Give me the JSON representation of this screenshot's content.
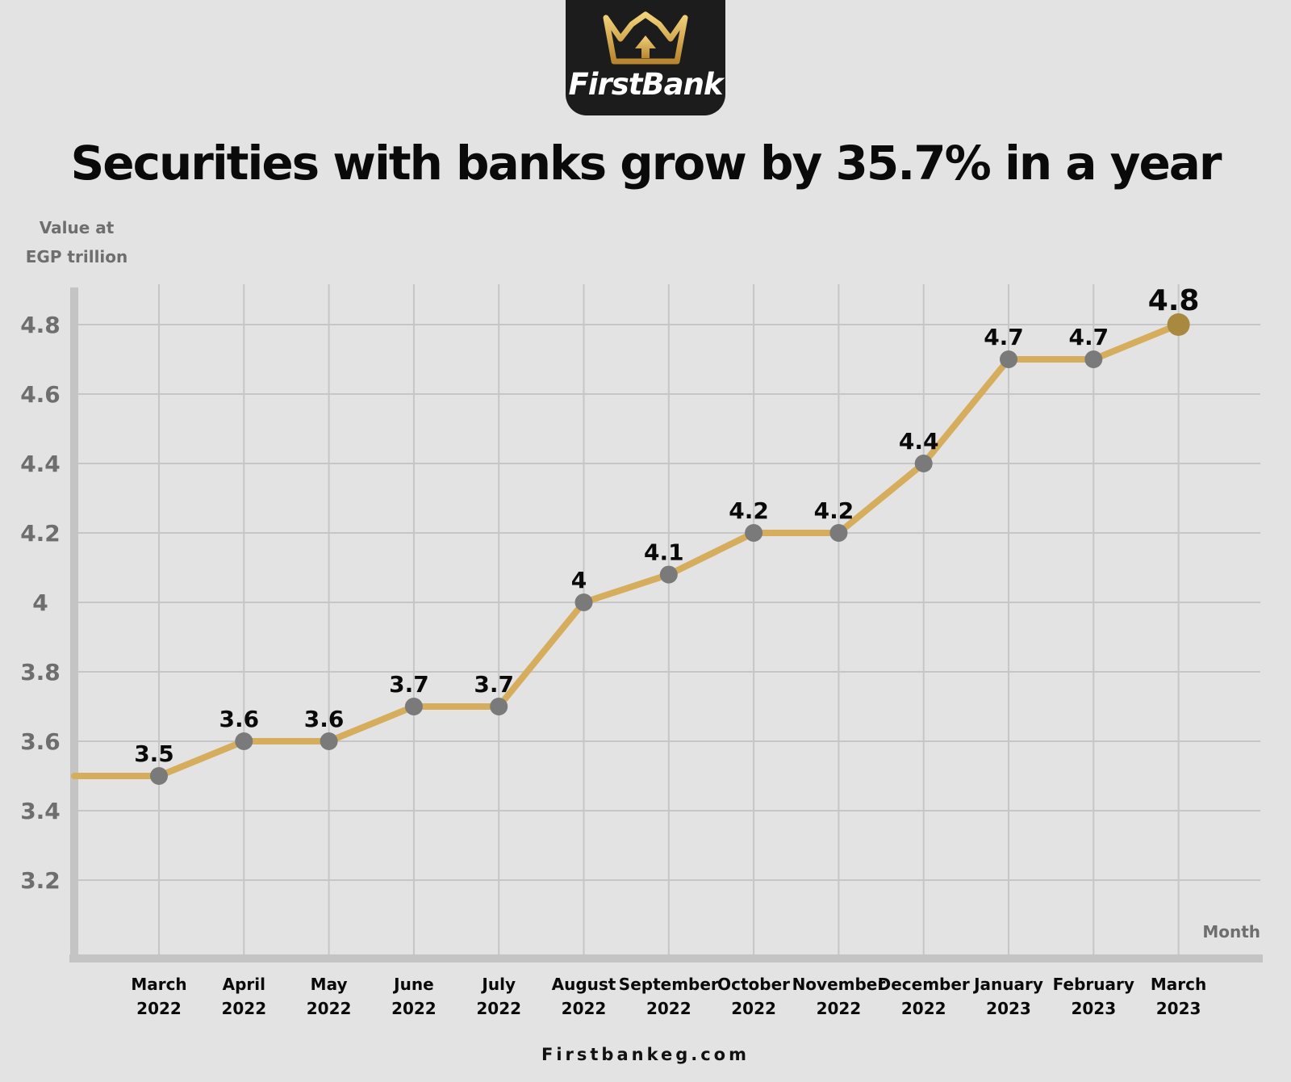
{
  "logo": {
    "text": "FirstBank",
    "icon": "crown-icon"
  },
  "footer": {
    "url": "Firstbankeg.com"
  },
  "colors": {
    "background": "#e3e3e3",
    "line": "#d6ad5c",
    "marker": "#7a7a7a",
    "last_marker": "#a8893f",
    "badge": "#1c1c1c"
  },
  "chart_data": {
    "type": "line",
    "title": "Securities with banks grow by 35.7% in a year",
    "ylabel_line1": "Value at",
    "ylabel_line2": "EGP trillion",
    "xlabel": "Month",
    "ylim": [
      3.1,
      4.9
    ],
    "yticks": [
      "3.2",
      "3.4",
      "3.6",
      "3.8",
      "4",
      "4.2",
      "4.4",
      "4.6",
      "4.8"
    ],
    "grid": true,
    "categories": [
      [
        "March",
        "2022"
      ],
      [
        "April",
        "2022"
      ],
      [
        "May",
        "2022"
      ],
      [
        "June",
        "2022"
      ],
      [
        "July",
        "2022"
      ],
      [
        "August",
        "2022"
      ],
      [
        "September",
        "2022"
      ],
      [
        "October",
        "2022"
      ],
      [
        "November",
        "2022"
      ],
      [
        "December",
        "2022"
      ],
      [
        "January",
        "2023"
      ],
      [
        "February",
        "2023"
      ],
      [
        "March",
        "2023"
      ]
    ],
    "values": [
      3.5,
      3.6,
      3.6,
      3.7,
      3.7,
      4.0,
      4.08,
      4.2,
      4.2,
      4.4,
      4.7,
      4.7,
      4.8
    ],
    "value_labels": [
      "3.5",
      "3.6",
      "3.6",
      "3.7",
      "3.7",
      "4",
      "4.1",
      "4.2",
      "4.2",
      "4.4",
      "4.7",
      "4.7",
      "4.8"
    ]
  }
}
